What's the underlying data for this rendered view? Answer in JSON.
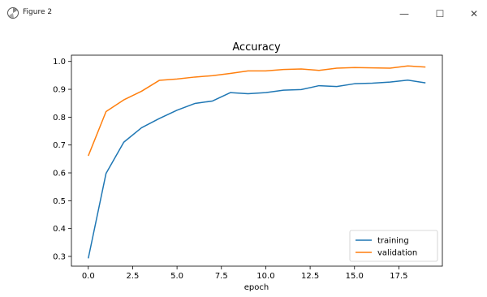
{
  "window": {
    "title": "Figure 2",
    "app_icon": "matplotlib-figure-icon",
    "controls": {
      "minimize": "—",
      "maximize": "☐",
      "close": "✕"
    }
  },
  "chart_data": {
    "type": "line",
    "title": "Accuracy",
    "xlabel": "epoch",
    "ylabel": "",
    "xlim": [
      -0.95,
      19.95
    ],
    "ylim": [
      0.265,
      1.0225
    ],
    "xticks": [
      0.0,
      2.5,
      5.0,
      7.5,
      10.0,
      12.5,
      15.0,
      17.5
    ],
    "xtick_labels": [
      "0.0",
      "2.5",
      "5.0",
      "7.5",
      "10.0",
      "12.5",
      "15.0",
      "17.5"
    ],
    "yticks": [
      0.3,
      0.4,
      0.5,
      0.6,
      0.7,
      0.8,
      0.9,
      1.0
    ],
    "ytick_labels": [
      "0.3",
      "0.4",
      "0.5",
      "0.6",
      "0.7",
      "0.8",
      "0.9",
      "1.0"
    ],
    "grid": false,
    "legend_position": "bottom-right",
    "x": [
      0,
      1,
      2,
      3,
      4,
      5,
      6,
      7,
      8,
      9,
      10,
      11,
      12,
      13,
      14,
      15,
      16,
      17,
      18,
      19
    ],
    "series": [
      {
        "name": "training",
        "color": "#1f77b4",
        "values": [
          0.293,
          0.598,
          0.71,
          0.762,
          0.795,
          0.825,
          0.849,
          0.858,
          0.888,
          0.884,
          0.888,
          0.897,
          0.899,
          0.913,
          0.91,
          0.92,
          0.922,
          0.926,
          0.933,
          0.923
        ]
      },
      {
        "name": "validation",
        "color": "#ff7f0e",
        "values": [
          0.661,
          0.82,
          0.862,
          0.893,
          0.932,
          0.937,
          0.944,
          0.949,
          0.957,
          0.966,
          0.966,
          0.971,
          0.973,
          0.968,
          0.976,
          0.978,
          0.977,
          0.976,
          0.984,
          0.98
        ]
      }
    ]
  }
}
